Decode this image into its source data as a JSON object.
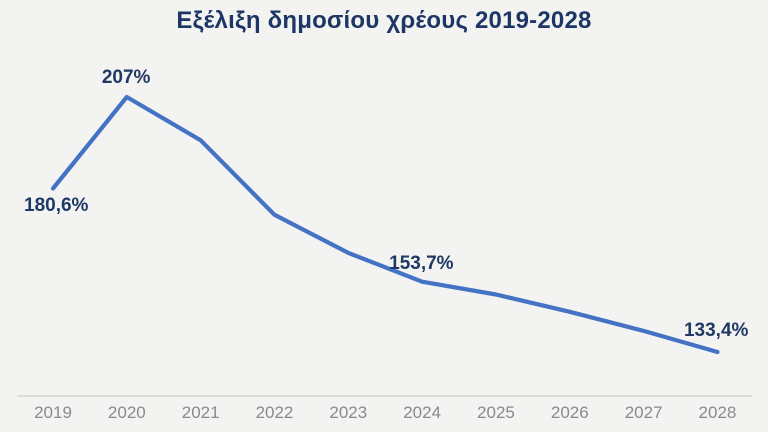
{
  "chart_data": {
    "type": "line",
    "title": "Εξέλιξη δημοσίου χρέους 2019-2028",
    "xlabel": "",
    "ylabel": "",
    "categories": [
      "2019",
      "2020",
      "2021",
      "2022",
      "2023",
      "2024",
      "2025",
      "2026",
      "2027",
      "2028"
    ],
    "values": [
      180.6,
      207.0,
      194.5,
      173.0,
      162.0,
      153.7,
      150.0,
      145.0,
      139.5,
      133.4
    ],
    "estimated_indices": [
      2,
      3,
      4,
      6,
      7,
      8
    ],
    "annotations": [
      {
        "index": 0,
        "text": "180,6%"
      },
      {
        "index": 1,
        "text": "207%"
      },
      {
        "index": 5,
        "text": "153,7%"
      },
      {
        "index": 9,
        "text": "133,4%"
      }
    ],
    "unit": "%",
    "ylim": [
      128,
      212
    ],
    "grid": false,
    "legend": "none",
    "background": "#f3f3f1",
    "line_color": "#4472c4",
    "title_color": "#1d3665",
    "annotation_color": "#1f3864",
    "axis_label_color": "#8a8a8a",
    "axis_line_color": "#dbdbd9"
  }
}
